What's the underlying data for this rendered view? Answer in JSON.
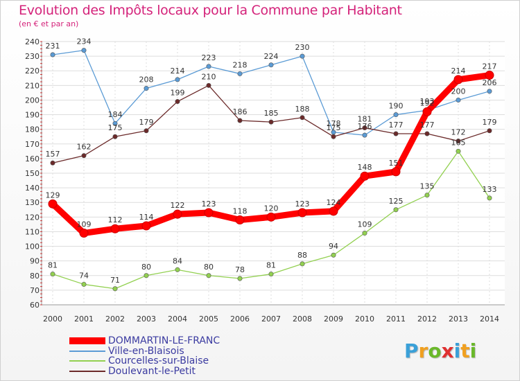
{
  "title": "Evolution des Impôts locaux pour la Commune par Habitant",
  "subtitle": "(en € et par an)",
  "logo": {
    "letters": [
      "P",
      "r",
      "o",
      "x",
      "i",
      "t",
      "i"
    ],
    "colors": [
      "#3aa0d8",
      "#f0a020",
      "#6ab82a",
      "#e03030",
      "#3aa0d8",
      "#f0a020",
      "#6ab82a"
    ]
  },
  "chart_data": {
    "type": "line",
    "categories": [
      "2000",
      "2001",
      "2002",
      "2003",
      "2004",
      "2005",
      "2006",
      "2007",
      "2008",
      "2009",
      "2010",
      "2011",
      "2012",
      "2013",
      "2014"
    ],
    "ylim": [
      60,
      240
    ],
    "yticks": [
      60,
      70,
      80,
      90,
      100,
      110,
      120,
      130,
      140,
      150,
      160,
      170,
      180,
      190,
      200,
      210,
      220,
      230,
      240
    ],
    "grid": true,
    "legend_position": "bottom-left",
    "series": [
      {
        "name": "DOMMARTIN-LE-FRANC",
        "color": "#ff0000",
        "values": [
          129,
          109,
          112,
          114,
          122,
          123,
          118,
          120,
          123,
          124,
          148,
          151,
          192,
          214,
          217
        ],
        "labels": [
          "129",
          "109",
          "112",
          "114",
          "122",
          "123",
          "118",
          "120",
          "123",
          "124",
          "148",
          "151",
          "192",
          "214",
          "217"
        ]
      },
      {
        "name": "Ville-en-Blaisois",
        "color": "#5b9bd5",
        "values": [
          231,
          234,
          184,
          208,
          214,
          223,
          218,
          224,
          230,
          178,
          176,
          190,
          193,
          200,
          206
        ],
        "labels": [
          "231",
          "234",
          "184",
          "208",
          "214",
          "223",
          "218",
          "224",
          "230",
          "178",
          "176",
          "190",
          "193",
          "200",
          "206"
        ]
      },
      {
        "name": "Courcelles-sur-Blaise",
        "color": "#92d050",
        "values": [
          81,
          74,
          71,
          80,
          84,
          80,
          78,
          81,
          88,
          94,
          109,
          125,
          135,
          165,
          133
        ],
        "labels": [
          "81",
          "74",
          "71",
          "80",
          "84",
          "80",
          "78",
          "81",
          "88",
          "94",
          "109",
          "125",
          "135",
          "165",
          "133"
        ]
      },
      {
        "name": "Doulevant-le-Petit",
        "color": "#6b2a2a",
        "values": [
          157,
          162,
          175,
          179,
          199,
          210,
          186,
          185,
          188,
          175,
          181,
          177,
          177,
          172,
          179
        ],
        "labels": [
          "157",
          "162",
          "175",
          "179",
          "199",
          "210",
          "186",
          "185",
          "188",
          "175",
          "181",
          "177",
          "177",
          "172",
          "179"
        ]
      }
    ]
  }
}
